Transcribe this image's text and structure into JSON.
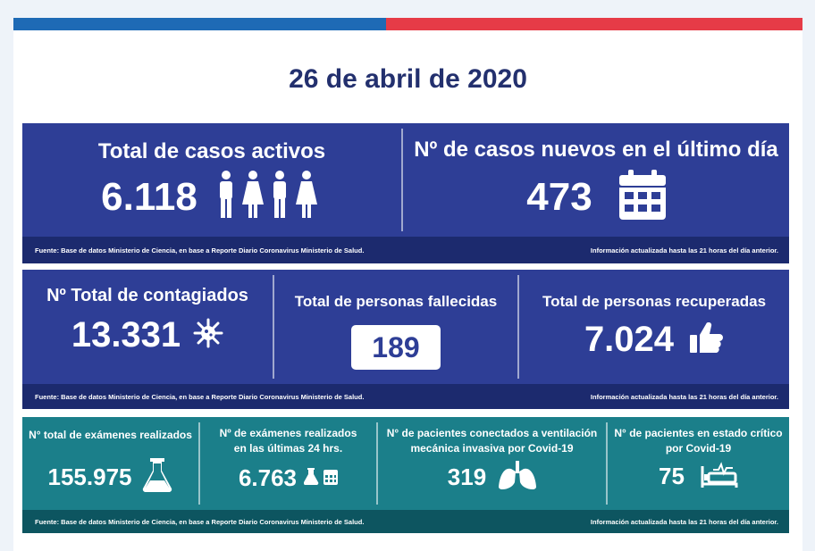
{
  "date": "26 de abril de 2020",
  "source_note": "Fuente: Base de datos Ministerio de Ciencia, en base a Reporte Diario Coronavirus Ministerio de Salud.",
  "update_note": "Información actualizada hasta las 21 horas  del día anterior.",
  "colors": {
    "navy": "#2e3e96",
    "navy_dark": "#1c2a6e",
    "teal": "#1b7f8a",
    "teal_dark": "#0d5560",
    "blue_bar": "#1e6ab5",
    "red_bar": "#e63b47"
  },
  "row1": {
    "active": {
      "label": "Total de casos activos",
      "value": "6.118",
      "icon": "people-icon"
    },
    "new": {
      "label": "Nº de casos nuevos en el último día",
      "value": "473",
      "icon": "calendar-icon"
    }
  },
  "row2": {
    "infected": {
      "label": "Nº Total de contagiados",
      "value": "13.331",
      "icon": "virus-icon"
    },
    "deceased": {
      "label": "Total de personas fallecidas",
      "value": "189"
    },
    "recovered": {
      "label": "Total de personas recuperadas",
      "value": "7.024",
      "icon": "thumbs-up-icon"
    }
  },
  "row3": {
    "exams": {
      "label": "N° total de exámenes realizados",
      "value": "155.975",
      "icon": "flask-icon"
    },
    "exams24": {
      "label_l1": "Nº de exámenes realizados",
      "label_l2": "en las últimas 24 hrs.",
      "value": "6.763",
      "icon": "flask-calendar-icon"
    },
    "ventilated": {
      "label_l1": "N° de pacientes conectados a ventilación",
      "label_l2": "mecánica invasiva por Covid-19",
      "value": "319",
      "icon": "lungs-icon"
    },
    "critical": {
      "label_l1": "N° de pacientes en estado crítico",
      "label_l2": "por Covid-19",
      "value": "75",
      "icon": "hospital-bed-icon"
    }
  }
}
